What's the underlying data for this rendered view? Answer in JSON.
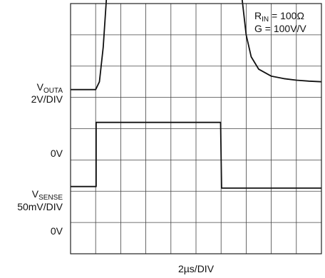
{
  "chart_data": {
    "type": "line",
    "title": "",
    "grid": true,
    "divisions": {
      "x": 10,
      "y": 8
    },
    "xlabel": "2µs/DIV",
    "time_per_div_us": 2,
    "annotation": {
      "line1_main": "R",
      "line1_sub": "IN",
      "line1_rest": " = 100Ω",
      "line2": "G = 100V/V"
    },
    "traces": [
      {
        "id": "v_outa",
        "label_main": "V",
        "label_sub": "OUTA",
        "scale_label": "2V/DIV",
        "scale_per_div": "2V",
        "zero_label": "0V",
        "zero_level_div": 1.25,
        "x_div": [
          0,
          0.75,
          1.0,
          1.15,
          1.3,
          1.5,
          1.7,
          1.9,
          2.3,
          4,
          6,
          6.45,
          6.55,
          6.65,
          6.8,
          7.0,
          7.2,
          7.5,
          8,
          8.5,
          9,
          9.5,
          10
        ],
        "y_div": [
          1.25,
          1.25,
          1.25,
          1.5,
          2.6,
          5.0,
          6.5,
          7.1,
          7.25,
          7.3,
          7.3,
          7.3,
          7.25,
          6.3,
          4.4,
          3.0,
          2.3,
          1.9,
          1.68,
          1.6,
          1.55,
          1.52,
          1.5
        ]
      },
      {
        "id": "v_sense",
        "label_main": "V",
        "label_sub": "SENSE",
        "scale_label": "50mV/DIV",
        "scale_per_div": "50mV",
        "zero_label": "0V",
        "zero_level_div": -1.85,
        "x_div": [
          0,
          0.9,
          1.02,
          1.02,
          5.98,
          6.02,
          10
        ],
        "y_div": [
          -1.85,
          -1.85,
          -1.85,
          0.2,
          0.2,
          -1.9,
          -1.9
        ]
      }
    ]
  }
}
